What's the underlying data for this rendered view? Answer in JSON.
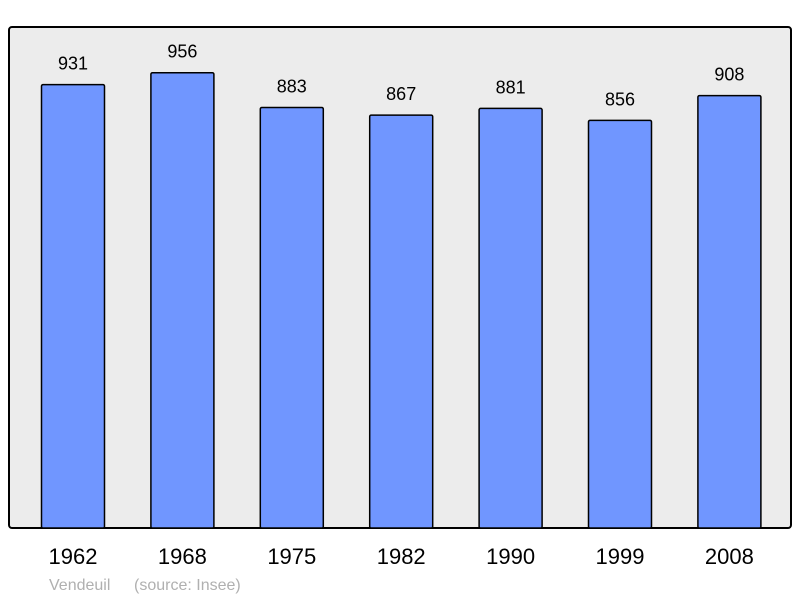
{
  "chart_data": {
    "type": "bar",
    "categories": [
      "1962",
      "1968",
      "1975",
      "1982",
      "1990",
      "1999",
      "2008"
    ],
    "values": [
      931,
      956,
      883,
      867,
      881,
      856,
      908
    ],
    "data_labels": [
      "931",
      "956",
      "883",
      "867",
      "881",
      "856",
      "908"
    ],
    "ylim": [
      0,
      1052
    ],
    "grid": false,
    "colors": {
      "bar": "#7096ff",
      "plot_background": "#ececec",
      "border": "#000000"
    }
  },
  "footer": {
    "place": "Vendeuil",
    "source": "(source: Insee)"
  }
}
